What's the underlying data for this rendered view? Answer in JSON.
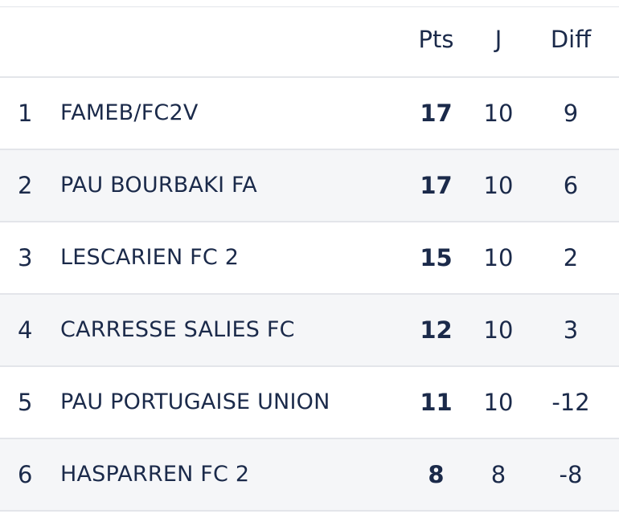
{
  "table": {
    "headers": {
      "pts": "Pts",
      "played": "J",
      "diff": "Diff"
    },
    "rows": [
      {
        "rank": "1",
        "team": "FAMEB/FC2V",
        "pts": "17",
        "played": "10",
        "diff": "9"
      },
      {
        "rank": "2",
        "team": "PAU BOURBAKI FA",
        "pts": "17",
        "played": "10",
        "diff": "6"
      },
      {
        "rank": "3",
        "team": "LESCARIEN FC 2",
        "pts": "15",
        "played": "10",
        "diff": "2"
      },
      {
        "rank": "4",
        "team": "CARRESSE SALIES FC",
        "pts": "12",
        "played": "10",
        "diff": "3"
      },
      {
        "rank": "5",
        "team": "PAU PORTUGAISE UNION",
        "pts": "11",
        "played": "10",
        "diff": "-12"
      },
      {
        "rank": "6",
        "team": "HASPARREN FC 2",
        "pts": "8",
        "played": "8",
        "diff": "-8"
      }
    ]
  },
  "colors": {
    "text": "#1b2a4a",
    "alt_row_bg": "#f5f6f8",
    "divider": "#e3e5ea"
  }
}
